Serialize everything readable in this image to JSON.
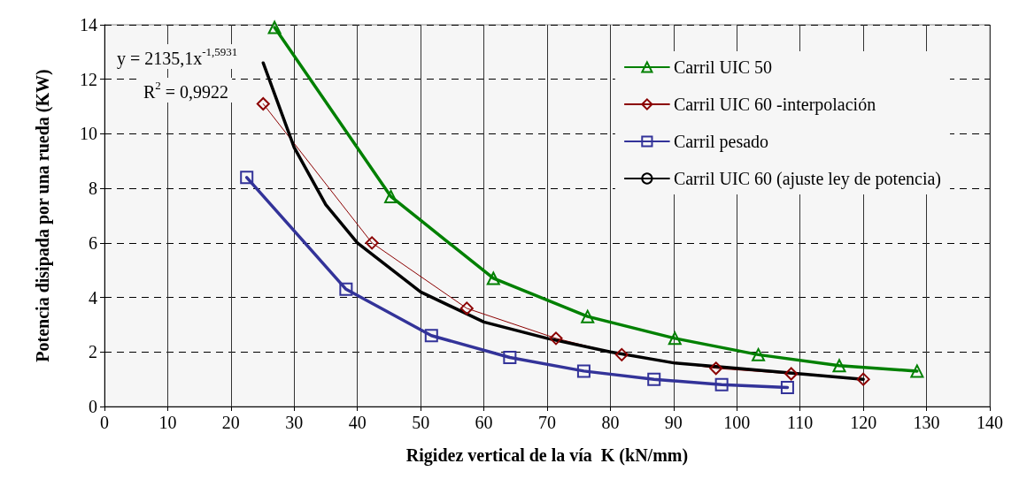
{
  "chart_data": {
    "type": "line",
    "xlabel": "Rigidez vertical de la vía  K (kN/mm)",
    "ylabel": "Potencia disipada por una rueda (KW)",
    "xlim": [
      0,
      140
    ],
    "xticks": [
      0,
      10,
      20,
      30,
      40,
      50,
      60,
      70,
      80,
      90,
      100,
      110,
      120,
      130,
      140
    ],
    "ylim": [
      0,
      14
    ],
    "yticks": [
      0,
      2,
      4,
      6,
      8,
      10,
      12,
      14
    ],
    "grid": true,
    "legend": "top right",
    "annotations": [
      "y = 2135,1x$^{-1,5931}$",
      "R$^{2}$ = 0,9922"
    ],
    "series": [
      {
        "name": "Carril UIC 50",
        "color": "#008000",
        "marker": "triangle",
        "x": [
          26.9,
          45.3,
          61.5,
          76.4,
          90.2,
          103.4,
          116.2,
          128.5
        ],
        "values": [
          13.9,
          7.7,
          4.7,
          3.3,
          2.5,
          1.9,
          1.5,
          1.3
        ]
      },
      {
        "name": "Carril UIC 60 -interpolación",
        "color": "#8b0000",
        "marker": "diamond",
        "x": [
          25.1,
          42.3,
          57.3,
          71.4,
          81.8,
          96.7,
          108.6,
          120
        ],
        "values": [
          11.1,
          6.0,
          3.6,
          2.5,
          1.9,
          1.4,
          1.2,
          1.0
        ]
      },
      {
        "name": "Carril pesado",
        "color": "#333399",
        "marker": "square",
        "x": [
          22.5,
          38.2,
          51.7,
          64.1,
          75.8,
          86.9,
          97.6,
          108
        ],
        "values": [
          8.4,
          4.3,
          2.6,
          1.8,
          1.3,
          1.0,
          0.8,
          0.7
        ]
      },
      {
        "name": "Carril UIC 60 (ajuste ley de potencia)",
        "color": "#000000",
        "marker": "none",
        "x": [
          25.1,
          30,
          35,
          40,
          50,
          60,
          70,
          80,
          90,
          100,
          110,
          120
        ],
        "values": [
          12.6,
          9.5,
          7.4,
          6.0,
          4.2,
          3.1,
          2.5,
          2.0,
          1.6,
          1.4,
          1.2,
          1.0
        ]
      }
    ]
  }
}
